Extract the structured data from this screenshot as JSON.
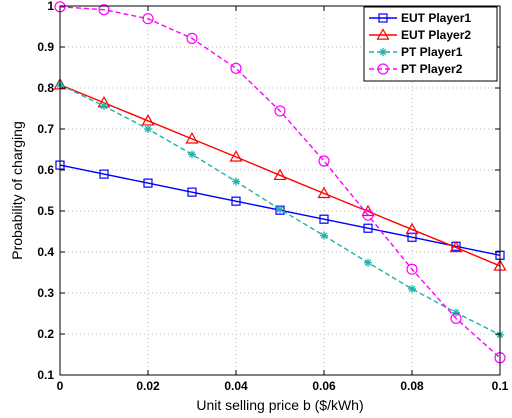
{
  "chart_data": {
    "type": "line",
    "title": "",
    "xlabel": "Unit selling price b ($/kWh)",
    "ylabel": "Probability of charging",
    "xlim": [
      0,
      0.1
    ],
    "ylim": [
      0.1,
      1.0
    ],
    "x_ticks": [
      0,
      0.02,
      0.04,
      0.06,
      0.08,
      0.1
    ],
    "x_tick_labels": [
      "0",
      "0.02",
      "0.04",
      "0.06",
      "0.08",
      "0.1"
    ],
    "y_ticks": [
      0.1,
      0.2,
      0.3,
      0.4,
      0.5,
      0.6,
      0.7,
      0.8,
      0.9,
      1.0
    ],
    "y_tick_labels": [
      "0.1",
      "0.2",
      "0.3",
      "0.4",
      "0.5",
      "0.6",
      "0.7",
      "0.8",
      "0.9",
      "1"
    ],
    "grid": true,
    "legend_position": "top-right",
    "x": [
      0,
      0.01,
      0.02,
      0.03,
      0.04,
      0.05,
      0.06,
      0.07,
      0.08,
      0.09,
      0.1
    ],
    "series": [
      {
        "name": "EUT Player1",
        "color": "#0000ff",
        "marker": "square",
        "line_style": "solid",
        "values": [
          0.612,
          0.59,
          0.568,
          0.546,
          0.524,
          0.502,
          0.48,
          0.458,
          0.436,
          0.414,
          0.392
        ]
      },
      {
        "name": "EUT Player2",
        "color": "#ff0000",
        "marker": "triangle",
        "line_style": "solid",
        "values": [
          0.808,
          0.764,
          0.72,
          0.676,
          0.632,
          0.587,
          0.543,
          0.499,
          0.455,
          0.411,
          0.366
        ]
      },
      {
        "name": "PT Player1",
        "color": "#20b2aa",
        "marker": "asterisk",
        "line_style": "dashed",
        "values": [
          0.808,
          0.756,
          0.7,
          0.638,
          0.572,
          0.504,
          0.44,
          0.374,
          0.31,
          0.252,
          0.198
        ]
      },
      {
        "name": "PT Player2",
        "color": "#ff00ff",
        "marker": "circle",
        "line_style": "dashed",
        "values": [
          0.998,
          0.991,
          0.969,
          0.921,
          0.848,
          0.744,
          0.622,
          0.49,
          0.358,
          0.238,
          0.142
        ]
      }
    ]
  }
}
